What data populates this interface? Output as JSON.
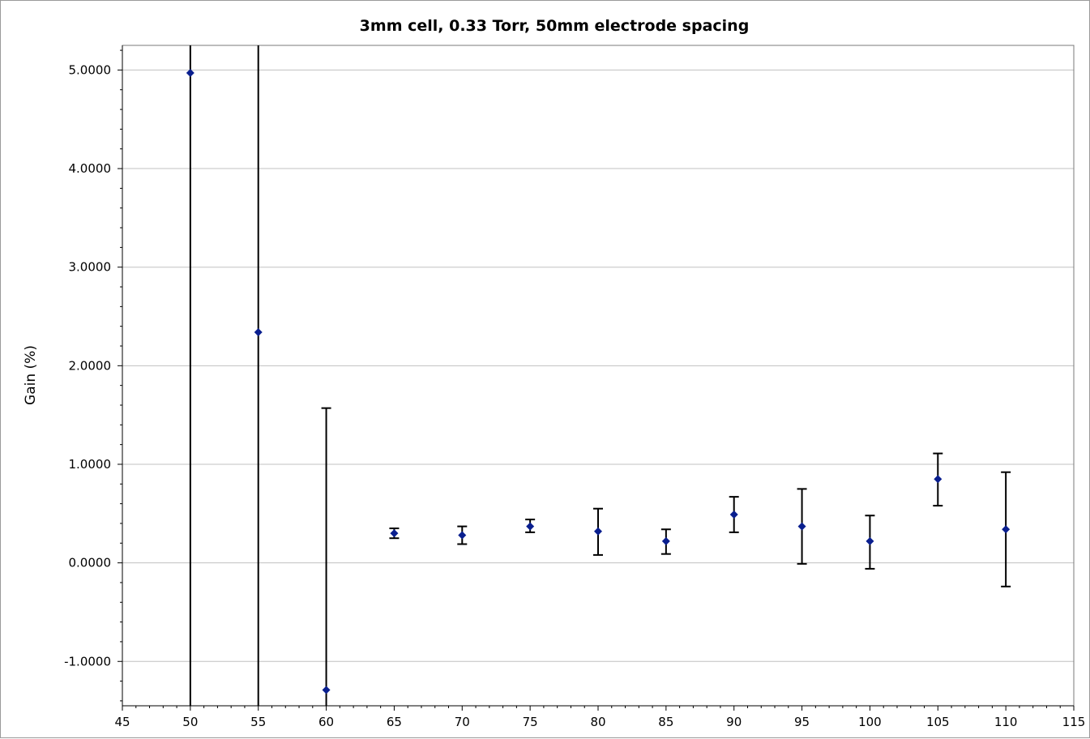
{
  "chart_data": {
    "type": "scatter",
    "title": "3mm cell, 0.33 Torr, 50mm electrode spacing",
    "xlabel": "",
    "ylabel": "Gain (%)",
    "xlim": [
      45,
      115
    ],
    "ylim": [
      -1.45,
      5.25
    ],
    "x_ticks": [
      45,
      50,
      55,
      60,
      65,
      70,
      75,
      80,
      85,
      90,
      95,
      100,
      105,
      110,
      115
    ],
    "y_ticks": [
      -1,
      0,
      1,
      2,
      3,
      4,
      5
    ],
    "y_tick_format": "0.0000",
    "grid": "horizontal",
    "colors": {
      "marker": "#0a1f8f",
      "errorbar": "#000000",
      "grid": "#c0c0c0"
    },
    "series": [
      {
        "x": [
          50,
          55,
          60,
          65,
          70,
          75,
          80,
          85,
          90,
          95,
          100,
          105,
          110
        ],
        "y": [
          4.97,
          2.34,
          -1.29,
          0.3,
          0.28,
          0.37,
          0.32,
          0.22,
          0.49,
          0.37,
          0.22,
          0.85,
          0.34
        ],
        "err_low": [
          -1.45,
          -1.45,
          -1.45,
          0.25,
          0.19,
          0.31,
          0.08,
          0.09,
          0.31,
          -0.01,
          -0.06,
          0.58,
          -0.24
        ],
        "err_high": [
          5.25,
          5.25,
          1.57,
          0.35,
          0.37,
          0.44,
          0.55,
          0.34,
          0.67,
          0.75,
          0.48,
          1.11,
          0.92
        ]
      }
    ]
  }
}
